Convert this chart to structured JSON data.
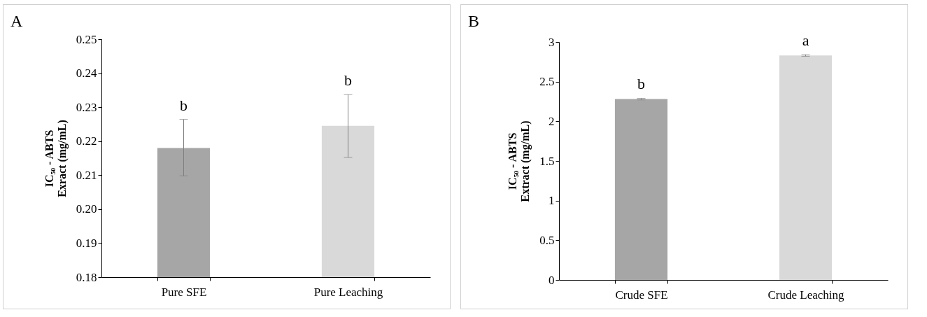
{
  "chart_data": [
    {
      "type": "bar",
      "ylabel": "IC₅₀ - ABTS\nExract (mg/mL)",
      "categories": [
        "Pure SFE",
        "Pure Leaching"
      ],
      "values": [
        0.218,
        0.2245
      ],
      "colors": [
        "#a6a6a6",
        "#d9d9d9"
      ],
      "errors": [
        [
          0.2098,
          0.2264
        ],
        [
          0.2152,
          0.2337
        ]
      ],
      "ylim": [
        0.18,
        0.25
      ],
      "yticks": [
        {
          "value": 0.18,
          "label": "0.18"
        },
        {
          "value": 0.19,
          "label": "0.19"
        },
        {
          "value": 0.2,
          "label": "0.20"
        },
        {
          "value": 0.21,
          "label": "0.21"
        },
        {
          "value": 0.22,
          "label": "0.22"
        },
        {
          "value": 0.23,
          "label": "0.23"
        },
        {
          "value": 0.24,
          "label": "0.24"
        },
        {
          "value": 0.25,
          "label": "0.25"
        }
      ],
      "annotations": [
        "A",
        "b",
        "b"
      ]
    },
    {
      "type": "bar",
      "ylabel": "IC₅₀ - ABTS\nExtract (mg/mL)",
      "categories": [
        "Crude SFE",
        "Crude Leaching"
      ],
      "values": [
        2.28,
        2.83
      ],
      "colors": [
        "#a6a6a6",
        "#d9d9d9"
      ],
      "errors": [
        0.01,
        0.01
      ],
      "ylim": [
        0,
        3
      ],
      "yticks": [
        0,
        0.5,
        1,
        1.5,
        2,
        2.5,
        3
      ],
      "annotations": [
        "B",
        "b",
        "a"
      ]
    }
  ]
}
